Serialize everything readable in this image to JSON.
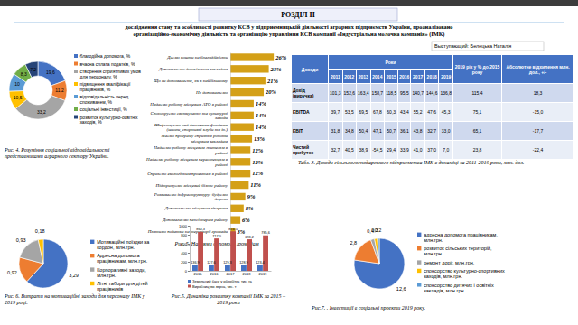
{
  "header": {
    "section": "РОЗДІЛ ІІ",
    "text": "дослідження стану та особливості розвитку КСВ у підприємницькій діяльності аграрних підприємств України, проаналізовано організаційно-економічну діяльність та організацію управління КСВ компанії «Індустріальна молочна компанія» (ІМК)",
    "speaker": "Выступающий: Белецька Наталія"
  },
  "chart_data": [
    {
      "type": "donut",
      "title": "Рис. 4. Розуміння соціальної відповідальності представниками аграрного сектору України.",
      "categories": [
        "благодійна допомога, %",
        "вчасна сплата податків, %",
        "створення сприятливих умов для персоналу, %",
        "підвищення кваліфікації працівників, %",
        "відповідальність перед споживачем, %",
        "соціальні інвестиції, %",
        "розвиток культурно-освітніх заходів, %"
      ],
      "values": [
        19.6,
        11.2,
        33.2,
        10.5,
        10,
        8.3,
        7.2
      ],
      "value_labels": [
        "19,6",
        "11,2",
        "33,2",
        "10,5",
        "10",
        "8,3",
        "7,2"
      ],
      "colors": [
        "#4472c4",
        "#ed7d31",
        "#a5a5a5",
        "#ffc000",
        "#5b9bd5",
        "#70ad47",
        "#264478"
      ],
      "data_labels": true,
      "legend": "right"
    },
    {
      "type": "bar",
      "orientation": "horizontal",
      "title": "Рис. 5. Напрями допомоги громадам",
      "categories": [
        "Даємо кошти на благодійність",
        "Допомагаємо дошкільним закладам",
        "Що ви допомагаєте, як в найбільшому",
        "Не допомагаємо",
        "Надаємо роботу місцевим АТО в районі",
        "Спонсоруємо святкування та культурні заходи",
        "Шефствуємо над дитячими фондами (школи, спортивні клуби та ін.)",
        "Маємо програму сприяння роботи місцевим закладам",
        "Надаємо роботу місцевим жителям в районі",
        "Надаємо роботу місцевим переселенцям в районі",
        "Сприяємо екологічним проектам в районі",
        "Підтримуємо місцевий бізнес району",
        "Розвиваємо інфраструктуру: будуємо дороги",
        "Допомагаємо місцевим лікарням",
        "Допомагаємо пенсіонерам району",
        "Платимо податки на території громади"
      ],
      "values": [
        26,
        23,
        21,
        20,
        14,
        14,
        14,
        13,
        12,
        12,
        12,
        11,
        9,
        8,
        6,
        3
      ],
      "value_labels": [
        "26%",
        "23%",
        "21%",
        "20%",
        "14%",
        "14%",
        "14%",
        "13%",
        "12%",
        "12%",
        "12%",
        "11%",
        "9%",
        "8%",
        "6%",
        "3%"
      ],
      "color": "#d4a017",
      "xlim": [
        0,
        27
      ],
      "tick_labels": "y",
      "data_labels": true
    },
    {
      "type": "pie",
      "title": "Рис. 6. Витрати на мотиваційні заходи для персоналу ІМК у 2019 році.",
      "categories": [
        "Мотиваційні поїздки за кордон, млн.грн.",
        "Адресна допомога працівникам, млн.грн.",
        "Корпоративні заходи, млн.грн.",
        "Літні табори для дітей працівників"
      ],
      "values": [
        3.29,
        0.92,
        0.93,
        0.18
      ],
      "value_labels": [
        "3,29",
        "0,92",
        "0,93",
        "0,18"
      ],
      "colors": [
        "#4472c4",
        "#ed7d31",
        "#a5a5a5",
        "#ffc000"
      ],
      "data_labels": true,
      "legend": "right"
    },
    {
      "type": "bar",
      "title": "Рис.5. Динаміка розвитку компанії ІМК за 2015 – 2019 роки",
      "categories": [
        "2015",
        "2016",
        "2017",
        "2018",
        "2019"
      ],
      "series": [
        {
          "name": "Земельний банк у обробітку, тис. га",
          "color": "#4472c4",
          "values": [
            136.9,
            127.6,
            129.3,
            128.9,
            123.4
          ],
          "value_labels": [
            "136,9",
            "127,6",
            "129,3",
            "128,9",
            "123,4"
          ]
        },
        {
          "name": "Виробництво зерна, тис. т",
          "color": "#c0504d",
          "values": [
            860.3,
            717.0,
            874.5,
            698.2,
            785.6
          ],
          "value_labels": [
            "860,3",
            "717,0",
            "874,5",
            "698,2",
            "785,6"
          ]
        }
      ],
      "ylim": [
        0,
        1000
      ],
      "yticks": [
        0,
        200,
        400,
        600,
        800,
        1000
      ],
      "data_labels": true,
      "legend": "bottom"
    },
    {
      "type": "pie",
      "title": "Рис.7. . Інвестиції в соціальні проекти 2019 року.",
      "categories": [
        "адресна допомога працівникам, млн.грн.",
        "розвиток сільських територій, млн.грн.",
        "ремонт доріг, млн.грн.",
        "спонсорство культурно-спортивних заходів, млн.грн.",
        "спонсорство дитячих і освітніх закладів, млн.грн."
      ],
      "values": [
        12.6,
        2.8,
        0.4,
        0.3,
        0.2
      ],
      "value_labels": [
        "12,6",
        "2,8",
        "0,4",
        "0,3",
        "0,2"
      ],
      "colors": [
        "#4472c4",
        "#ed7d31",
        "#a5a5a5",
        "#ffc000",
        "#5b9bd5"
      ],
      "data_labels": true,
      "legend": "right"
    }
  ],
  "table": {
    "caption": "Табл. 3. Доходи сільськогосподарського підприємства ІМК в динаміці за 2011-2019 роки, млн. дол.",
    "corner": "Доходи",
    "group": "Роки",
    "columns": [
      "2011",
      "2012",
      "2013",
      "2014",
      "2015",
      "2016",
      "2017",
      "2018",
      "2019",
      "2019 рік у % до 2015 року",
      "Абсолютне відхилення млн. дол., +/-"
    ],
    "rows": [
      [
        "Дохід (виручка)",
        "101,3",
        "152,6",
        "163,4",
        "158,7",
        "118,5",
        "95,5",
        "140,7",
        "144,6",
        "136,8",
        "115,4",
        "18,3"
      ],
      [
        "EBITDA",
        "39,7",
        "53,5",
        "69,5",
        "67,8",
        "60,3",
        "43,4",
        "55,2",
        "47,6",
        "45,3",
        "75,1",
        "-15,0"
      ],
      [
        "EBIT",
        "31,8",
        "34,8",
        "50,4",
        "47,1",
        "50,7",
        "36,1",
        "43,8",
        "32,7",
        "33,0",
        "65,1",
        "-17,7"
      ],
      [
        "Чистий прибуток",
        "32,7",
        "40,5",
        "38,9",
        "-54,5",
        "29,4",
        "33,9",
        "41,0",
        "37,0",
        "7,0",
        "23,8",
        "-22,4"
      ]
    ]
  }
}
